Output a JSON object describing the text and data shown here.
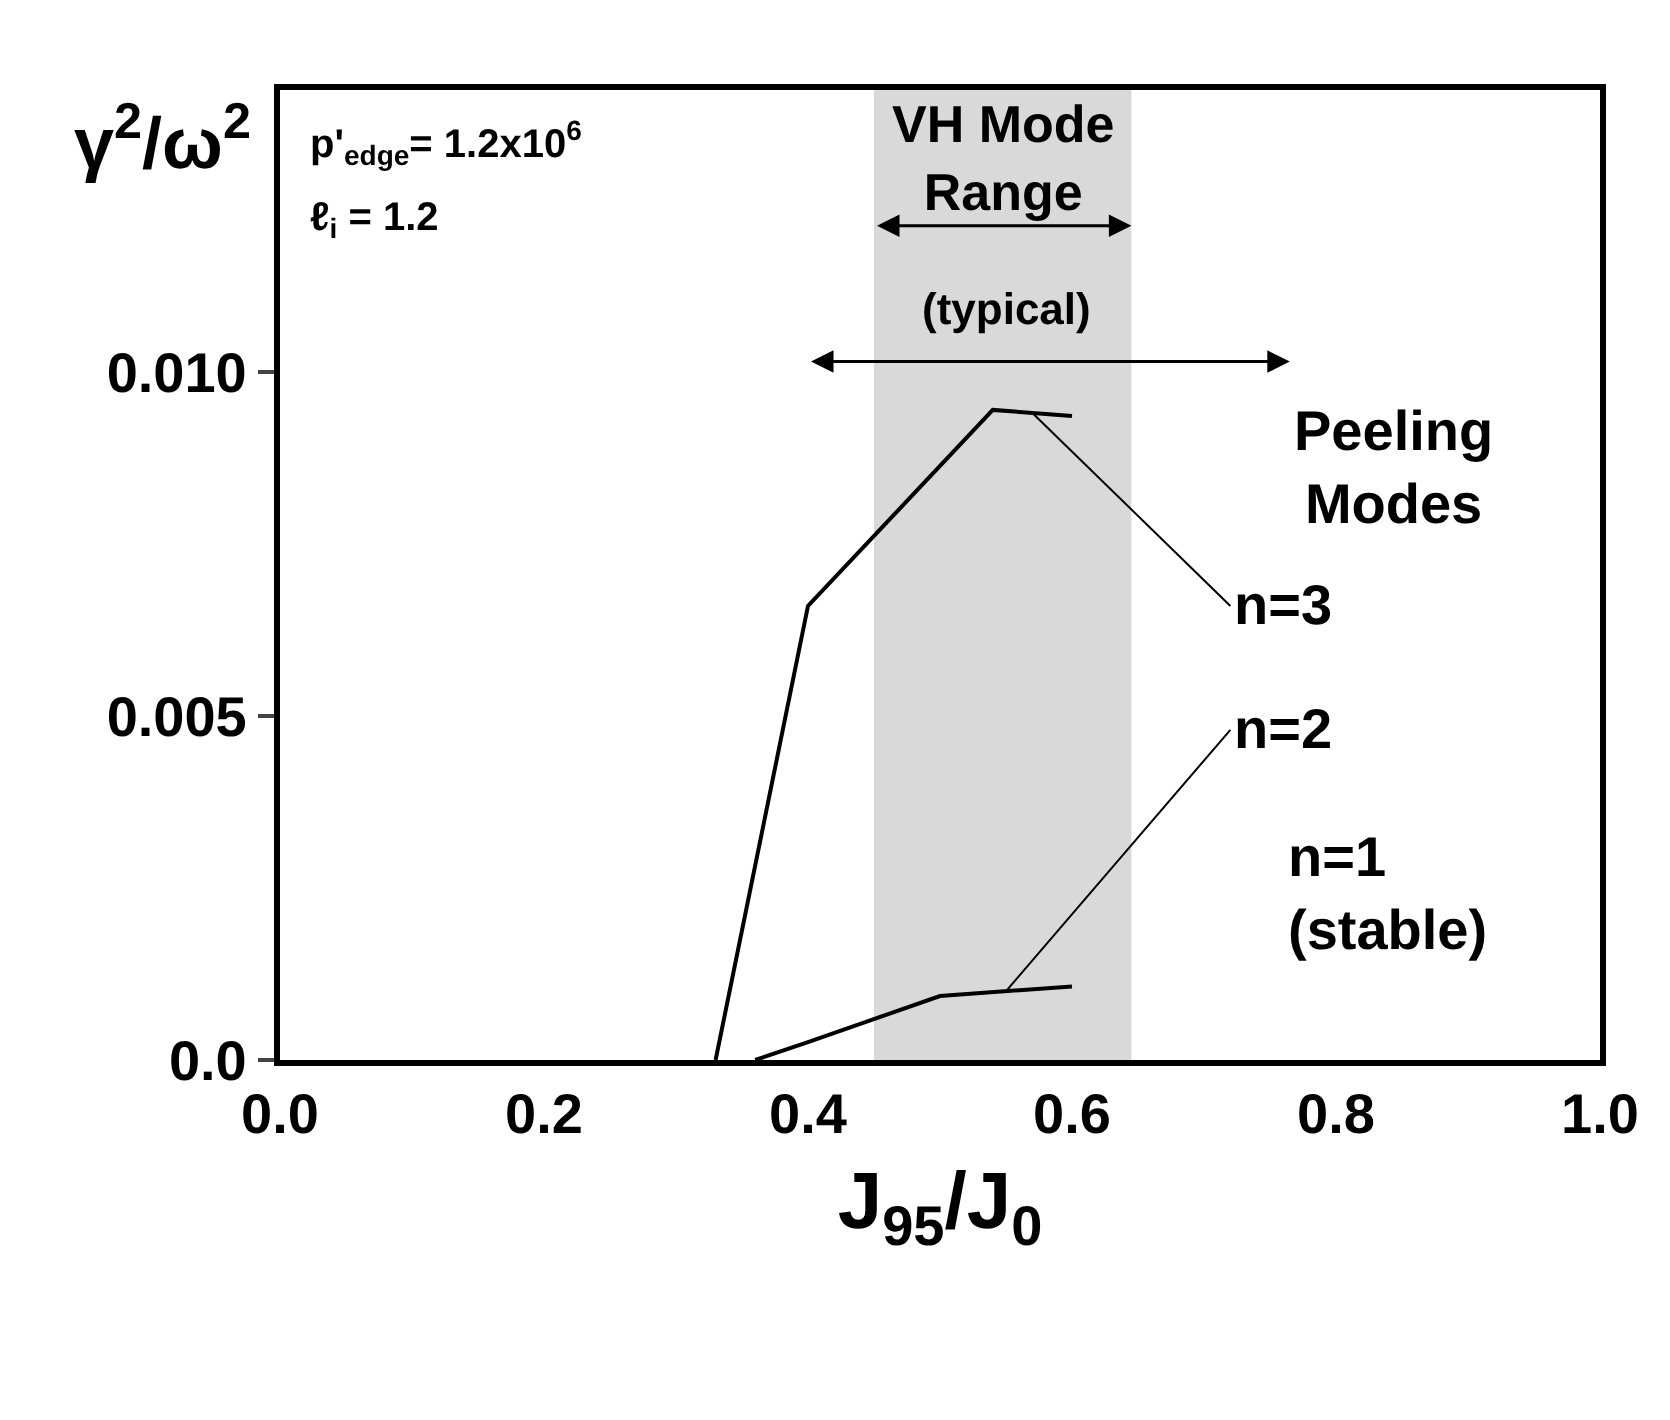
{
  "chart_data": {
    "type": "line",
    "xlabel": "J$_{95}$/J$_{0}$",
    "ylabel": "γ$^{2}$/ω$^{2}$",
    "series": [
      {
        "name": "n=3",
        "color": "#000000",
        "x": [
          0.33,
          0.4,
          0.54,
          0.6
        ],
        "values": [
          0.0,
          0.0066,
          0.00945,
          0.00936
        ]
      },
      {
        "name": "n=2",
        "color": "#000000",
        "x": [
          0.36,
          0.4,
          0.5,
          0.6
        ],
        "values": [
          0.0,
          0.00026,
          0.00093,
          0.00107
        ]
      }
    ],
    "xlim": [
      0,
      1
    ],
    "ylim": [
      0,
      0.0141
    ],
    "xticks": [
      {
        "value": 0,
        "label": "0.0"
      },
      0.2,
      0.4,
      0.6,
      0.8,
      {
        "value": 1,
        "label": "1.0"
      }
    ],
    "yticks": [
      {
        "value": 0,
        "label": "0.0"
      },
      {
        "value": 0.005,
        "label": "0.005"
      },
      {
        "value": 0.01,
        "label": "0.010"
      }
    ],
    "bands": [
      {
        "axis": "x",
        "from": 0.45,
        "to": 0.645,
        "label": "VH Mode Range",
        "color": "#d9d9d9"
      }
    ],
    "annotations": [
      "(typical)",
      "Peeling Modes",
      "n=1 (stable)",
      "p'$_{edge}$= 1.2x10$^{6}$",
      "ℓ$_{i}$ = 1.2"
    ],
    "grid": false,
    "legend": false,
    "marker": "none",
    "line_style": "solid"
  }
}
